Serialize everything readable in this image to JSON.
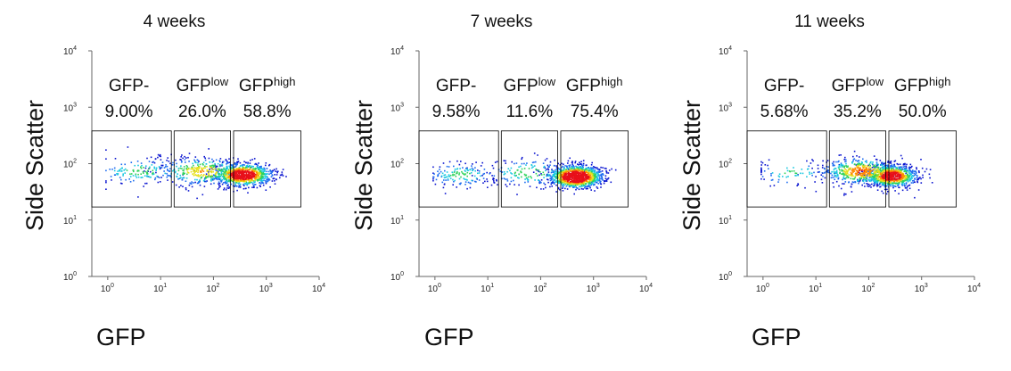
{
  "figure": {
    "x_label": "GFP",
    "y_label": "Side Scatter"
  },
  "chart_data": [
    {
      "type": "scatter",
      "title": "4 weeks",
      "xlabel": "GFP",
      "ylabel": "Side Scatter",
      "x_scale": "log",
      "y_scale": "log",
      "xlim": [
        0.5,
        10000
      ],
      "ylim": [
        1,
        10000
      ],
      "x_ticks": [
        {
          "base": "10",
          "exp": "0"
        },
        {
          "base": "10",
          "exp": "1"
        },
        {
          "base": "10",
          "exp": "2"
        },
        {
          "base": "10",
          "exp": "3"
        },
        {
          "base": "10",
          "exp": "4"
        }
      ],
      "y_ticks": [
        {
          "base": "10",
          "exp": "0"
        },
        {
          "base": "10",
          "exp": "1"
        },
        {
          "base": "10",
          "exp": "2"
        },
        {
          "base": "10",
          "exp": "3"
        },
        {
          "base": "10",
          "exp": "4"
        }
      ],
      "gates": [
        {
          "name": "GFP-",
          "sup": "",
          "percent": "9.00%",
          "x_range": [
            0.5,
            16
          ],
          "y_range": [
            17,
            380
          ]
        },
        {
          "name": "GFP",
          "sup": "low",
          "percent": "26.0%",
          "x_range": [
            18,
            210
          ],
          "y_range": [
            17,
            380
          ]
        },
        {
          "name": "GFP",
          "sup": "high",
          "percent": "58.8%",
          "x_range": [
            240,
            4500
          ],
          "y_range": [
            17,
            380
          ]
        }
      ],
      "populations": [
        {
          "x_center": 4,
          "y_center": 75,
          "x_spread": 0.45,
          "y_spread": 0.13,
          "weight": 0.1
        },
        {
          "x_center": 60,
          "y_center": 75,
          "x_spread": 0.45,
          "y_spread": 0.13,
          "weight": 0.26
        },
        {
          "x_center": 350,
          "y_center": 65,
          "x_spread": 0.28,
          "y_spread": 0.1,
          "weight": 0.64
        }
      ]
    },
    {
      "type": "scatter",
      "title": "7 weeks",
      "xlabel": "GFP",
      "ylabel": "Side Scatter",
      "x_scale": "log",
      "y_scale": "log",
      "xlim": [
        0.5,
        10000
      ],
      "ylim": [
        1,
        10000
      ],
      "x_ticks": [
        {
          "base": "10",
          "exp": "0"
        },
        {
          "base": "10",
          "exp": "1"
        },
        {
          "base": "10",
          "exp": "2"
        },
        {
          "base": "10",
          "exp": "3"
        },
        {
          "base": "10",
          "exp": "4"
        }
      ],
      "y_ticks": [
        {
          "base": "10",
          "exp": "0"
        },
        {
          "base": "10",
          "exp": "1"
        },
        {
          "base": "10",
          "exp": "2"
        },
        {
          "base": "10",
          "exp": "3"
        },
        {
          "base": "10",
          "exp": "4"
        }
      ],
      "gates": [
        {
          "name": "GFP-",
          "sup": "",
          "percent": "9.58%",
          "x_range": [
            0.5,
            16
          ],
          "y_range": [
            17,
            380
          ]
        },
        {
          "name": "GFP",
          "sup": "low",
          "percent": "11.6%",
          "x_range": [
            18,
            210
          ],
          "y_range": [
            17,
            380
          ]
        },
        {
          "name": "GFP",
          "sup": "high",
          "percent": "75.4%",
          "x_range": [
            240,
            4500
          ],
          "y_range": [
            17,
            380
          ]
        }
      ],
      "populations": [
        {
          "x_center": 3,
          "y_center": 65,
          "x_spread": 0.35,
          "y_spread": 0.11,
          "weight": 0.1
        },
        {
          "x_center": 60,
          "y_center": 70,
          "x_spread": 0.45,
          "y_spread": 0.13,
          "weight": 0.12
        },
        {
          "x_center": 450,
          "y_center": 60,
          "x_spread": 0.25,
          "y_spread": 0.1,
          "weight": 0.78
        }
      ]
    },
    {
      "type": "scatter",
      "title": "11 weeks",
      "xlabel": "GFP",
      "ylabel": "Side Scatter",
      "x_scale": "log",
      "y_scale": "log",
      "xlim": [
        0.5,
        10000
      ],
      "ylim": [
        1,
        10000
      ],
      "x_ticks": [
        {
          "base": "10",
          "exp": "0"
        },
        {
          "base": "10",
          "exp": "1"
        },
        {
          "base": "10",
          "exp": "2"
        },
        {
          "base": "10",
          "exp": "3"
        },
        {
          "base": "10",
          "exp": "4"
        }
      ],
      "y_ticks": [
        {
          "base": "10",
          "exp": "0"
        },
        {
          "base": "10",
          "exp": "1"
        },
        {
          "base": "10",
          "exp": "2"
        },
        {
          "base": "10",
          "exp": "3"
        },
        {
          "base": "10",
          "exp": "4"
        }
      ],
      "gates": [
        {
          "name": "GFP-",
          "sup": "",
          "percent": "5.68%",
          "x_range": [
            0.5,
            16
          ],
          "y_range": [
            17,
            380
          ]
        },
        {
          "name": "GFP",
          "sup": "low",
          "percent": "35.2%",
          "x_range": [
            18,
            210
          ],
          "y_range": [
            17,
            380
          ]
        },
        {
          "name": "GFP",
          "sup": "high",
          "percent": "50.0%",
          "x_range": [
            240,
            4500
          ],
          "y_range": [
            17,
            380
          ]
        }
      ],
      "populations": [
        {
          "x_center": 3.5,
          "y_center": 70,
          "x_spread": 0.4,
          "y_spread": 0.12,
          "weight": 0.06
        },
        {
          "x_center": 70,
          "y_center": 75,
          "x_spread": 0.38,
          "y_spread": 0.12,
          "weight": 0.37
        },
        {
          "x_center": 260,
          "y_center": 62,
          "x_spread": 0.25,
          "y_spread": 0.1,
          "weight": 0.57
        }
      ]
    }
  ],
  "colors": {
    "axis": "#666666",
    "gate_border": "#000000",
    "density_palette": [
      "#0a14d0",
      "#1d6cf0",
      "#19c8e0",
      "#2fd25a",
      "#e6e01c",
      "#ff8a00",
      "#e8101a"
    ]
  }
}
